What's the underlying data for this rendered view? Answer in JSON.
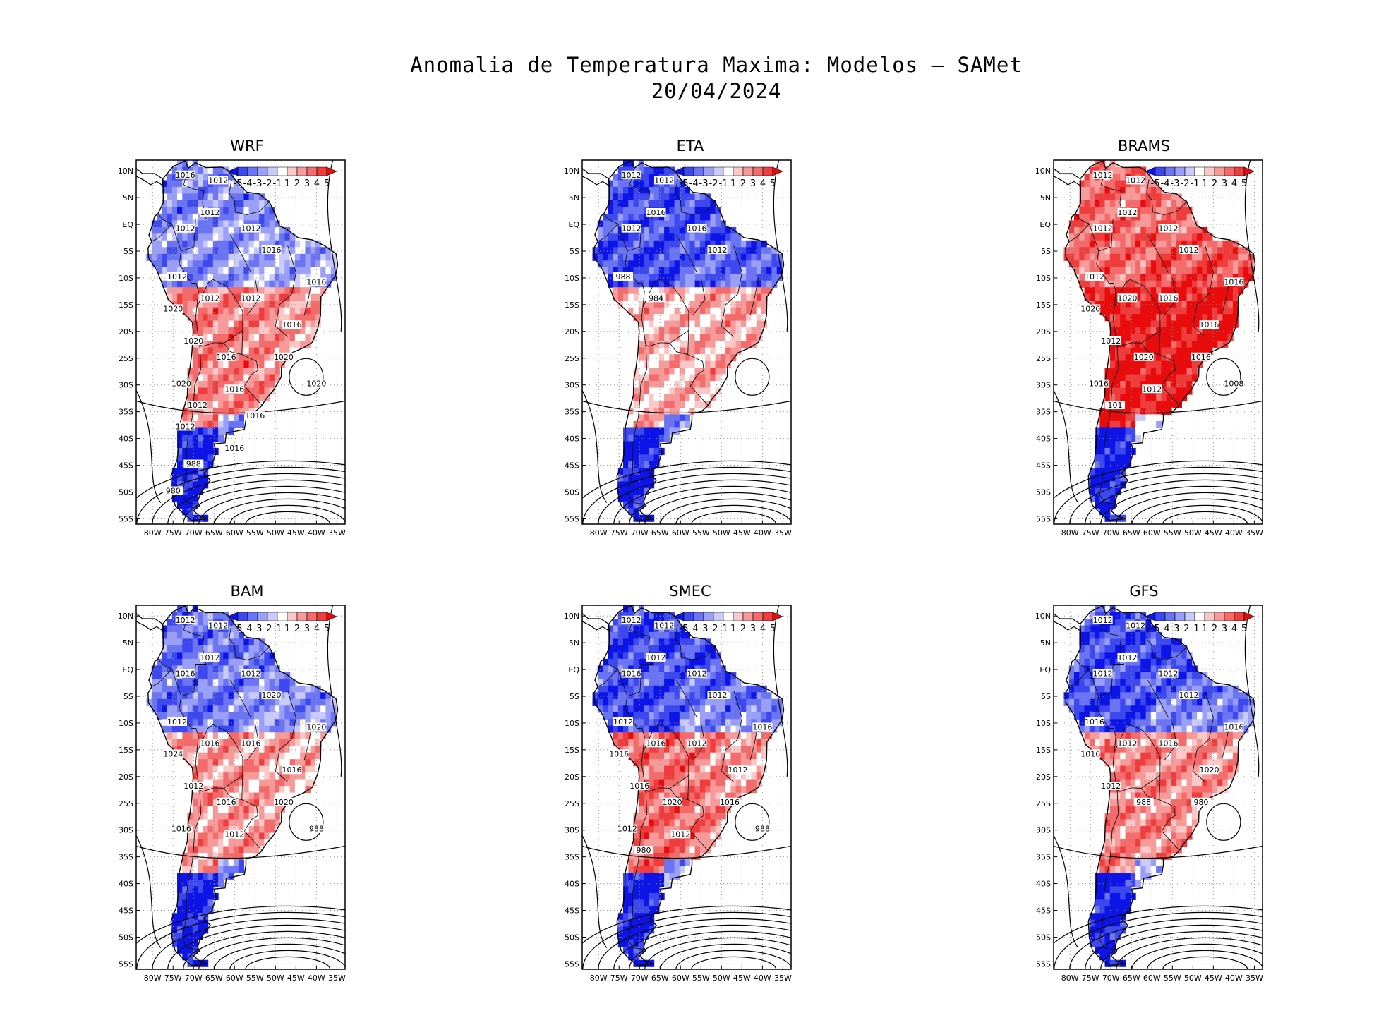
{
  "title": {
    "line1": "Anomalia de Temperatura Maxima: Modelos — SAMet",
    "line2": "20/04/2024"
  },
  "colorbar": {
    "labels": [
      "-5",
      "-4",
      "-3",
      "-2",
      "-1",
      "1",
      "2",
      "3",
      "4",
      "5"
    ],
    "colors": [
      "#0c14e8",
      "#3d49ef",
      "#6b74f3",
      "#9aa0f7",
      "#c9ccfb",
      "#ffffff",
      "#fbc8c8",
      "#f79a9a",
      "#f36b6b",
      "#ef3d3d",
      "#e80c0c"
    ]
  },
  "axes": {
    "lat_labels": [
      "10N",
      "5N",
      "EQ",
      "5S",
      "10S",
      "15S",
      "20S",
      "25S",
      "30S",
      "35S",
      "40S",
      "45S",
      "50S",
      "55S"
    ],
    "lon_labels": [
      "80W",
      "75W",
      "70W",
      "65W",
      "60W",
      "55W",
      "50W",
      "45W",
      "40W",
      "35W"
    ]
  },
  "panels": [
    {
      "name": "WRF",
      "anomaly": [
        -2.5,
        -1.5,
        2.5,
        2,
        -5
      ],
      "isobars": [
        "1016",
        "1012",
        "1012",
        "1012",
        "1016",
        "1012",
        "1012",
        "1012",
        "1012",
        "1016",
        "1016",
        "1020",
        "1020",
        "1016",
        "1020",
        "1020",
        "1016",
        "1020",
        "1012",
        "1016",
        "1012",
        "1016",
        "988",
        "980"
      ]
    },
    {
      "name": "ETA",
      "anomaly": [
        -4,
        -3,
        1.5,
        2,
        -5
      ],
      "isobars": [
        "1012",
        "1012",
        "1016",
        "1016",
        "1012",
        "1012",
        "988",
        "984"
      ]
    },
    {
      "name": "BRAMS",
      "anomaly": [
        3,
        4,
        5,
        5,
        -5
      ],
      "isobars": [
        "1012",
        "1012",
        "1012",
        "1012",
        "1012",
        "1012",
        "1012",
        "1020",
        "1016",
        "1016",
        "1016",
        "1020",
        "1012",
        "1020",
        "1016",
        "1016",
        "1012",
        "1008",
        "101"
      ]
    },
    {
      "name": "BAM",
      "anomaly": [
        -3,
        -2,
        2,
        1.5,
        -5
      ],
      "isobars": [
        "1012",
        "1012",
        "1012",
        "1012",
        "1020",
        "1016",
        "1012",
        "1016",
        "1016",
        "1020",
        "1016",
        "1024",
        "1012",
        "1016",
        "1020",
        "1016",
        "1012",
        "988"
      ]
    },
    {
      "name": "SMEC",
      "anomaly": [
        -4,
        -2,
        3,
        1.5,
        -5
      ],
      "isobars": [
        "1012",
        "1012",
        "1012",
        "1012",
        "1012",
        "1016",
        "1012",
        "1016",
        "1012",
        "1016",
        "1012",
        "1016",
        "1016",
        "1020",
        "1016",
        "1012",
        "1012",
        "988",
        "980"
      ]
    },
    {
      "name": "GFS",
      "anomaly": [
        -4,
        -2,
        2.5,
        2,
        -5
      ],
      "isobars": [
        "1012",
        "1012",
        "1012",
        "1012",
        "1012",
        "1012",
        "1016",
        "1012",
        "1016",
        "1016",
        "1020",
        "1016",
        "1012",
        "988",
        "980"
      ]
    }
  ]
}
